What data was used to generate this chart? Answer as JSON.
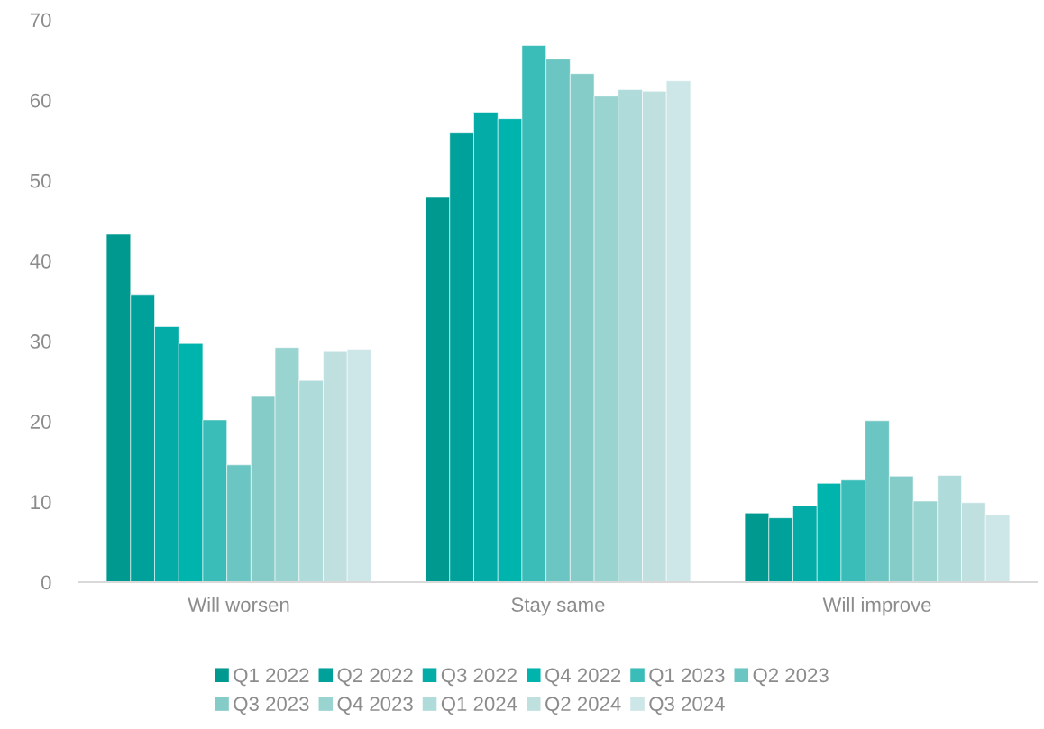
{
  "chart_data": {
    "type": "bar",
    "categories": [
      "Will worsen",
      "Stay same",
      "Will improve"
    ],
    "ylim": [
      0,
      70
    ],
    "yticks": [
      0,
      10,
      20,
      30,
      40,
      50,
      60,
      70
    ],
    "grid": false,
    "legend": "bottom",
    "series": [
      {
        "name": "Q1 2022",
        "color": "#009990",
        "values": [
          43.3,
          47.9,
          8.6
        ]
      },
      {
        "name": "Q2 2022",
        "color": "#00a19b",
        "values": [
          35.8,
          55.9,
          8.0
        ]
      },
      {
        "name": "Q3 2022",
        "color": "#03aca7",
        "values": [
          31.8,
          58.5,
          9.5
        ]
      },
      {
        "name": "Q4 2022",
        "color": "#00b4ae",
        "values": [
          29.7,
          57.7,
          12.3
        ]
      },
      {
        "name": "Q1 2023",
        "color": "#3abcb8",
        "values": [
          20.2,
          66.8,
          12.7
        ]
      },
      {
        "name": "Q2 2023",
        "color": "#6bc5c2",
        "values": [
          14.6,
          65.1,
          20.1
        ]
      },
      {
        "name": "Q3 2023",
        "color": "#85ccc9",
        "values": [
          23.1,
          63.3,
          13.2
        ]
      },
      {
        "name": "Q4 2023",
        "color": "#9ad4d1",
        "values": [
          29.2,
          60.5,
          10.1
        ]
      },
      {
        "name": "Q1 2024",
        "color": "#b0dbdb",
        "values": [
          25.1,
          61.3,
          13.3
        ]
      },
      {
        "name": "Q2 2024",
        "color": "#c0e0e0",
        "values": [
          28.7,
          61.1,
          9.9
        ]
      },
      {
        "name": "Q3 2024",
        "color": "#cde6e7",
        "values": [
          29.0,
          62.4,
          8.4
        ]
      }
    ]
  }
}
